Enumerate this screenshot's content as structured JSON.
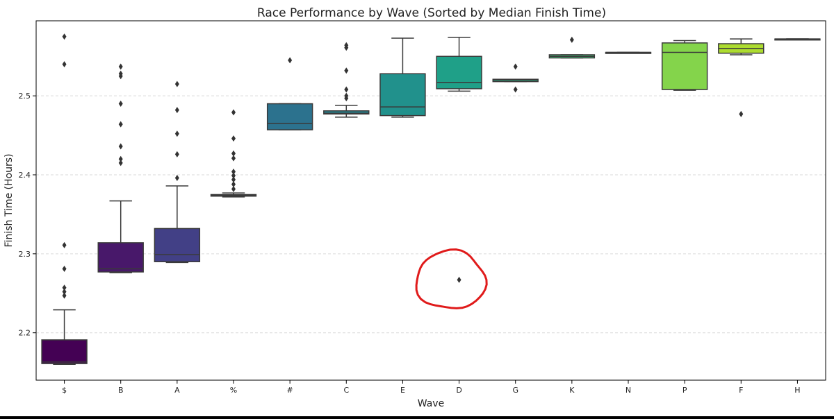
{
  "chart_data": {
    "type": "box",
    "title": "Race Performance by Wave (Sorted by Median Finish Time)",
    "xlabel": "Wave",
    "ylabel": "Finish Time (Hours)",
    "ylim": [
      2.14,
      2.595
    ],
    "yticks": [
      2.2,
      2.3,
      2.4,
      2.5
    ],
    "grid": "y-dashed",
    "categories": [
      "$",
      "B",
      "A",
      "%",
      "#",
      "C",
      "E",
      "D",
      "G",
      "K",
      "N",
      "P",
      "F",
      "H"
    ],
    "boxes": [
      {
        "wave": "$",
        "q1": 2.161,
        "median": 2.163,
        "q3": 2.191,
        "whisker_low": 2.16,
        "whisker_high": 2.229,
        "outliers": [
          2.575,
          2.54,
          2.311,
          2.281,
          2.257,
          2.252,
          2.247
        ],
        "color": "#440154"
      },
      {
        "wave": "B",
        "q1": 2.277,
        "median": 2.281,
        "q3": 2.314,
        "whisker_low": 2.276,
        "whisker_high": 2.367,
        "outliers": [
          2.537,
          2.528,
          2.525,
          2.49,
          2.464,
          2.436,
          2.42,
          2.415
        ],
        "color": "#48186a"
      },
      {
        "wave": "A",
        "q1": 2.29,
        "median": 2.299,
        "q3": 2.332,
        "whisker_low": 2.289,
        "whisker_high": 2.386,
        "outliers": [
          2.515,
          2.482,
          2.452,
          2.426,
          2.396
        ],
        "color": "#424086"
      },
      {
        "wave": "%",
        "q1": 2.373,
        "median": 2.374,
        "q3": 2.375,
        "whisker_low": 2.372,
        "whisker_high": 2.377,
        "outliers": [
          2.479,
          2.446,
          2.427,
          2.421,
          2.404,
          2.399,
          2.394,
          2.388,
          2.382
        ],
        "color": "#39568c"
      },
      {
        "wave": "#",
        "q1": 2.457,
        "median": 2.465,
        "q3": 2.49,
        "whisker_low": 2.457,
        "whisker_high": 2.49,
        "outliers": [
          2.545
        ],
        "color": "#2c728e"
      },
      {
        "wave": "C",
        "q1": 2.477,
        "median": 2.478,
        "q3": 2.481,
        "whisker_low": 2.473,
        "whisker_high": 2.488,
        "outliers": [
          2.564,
          2.561,
          2.532,
          2.508,
          2.5,
          2.497
        ],
        "color": "#26828e"
      },
      {
        "wave": "E",
        "q1": 2.475,
        "median": 2.486,
        "q3": 2.528,
        "whisker_low": 2.473,
        "whisker_high": 2.573,
        "outliers": [],
        "color": "#21918c"
      },
      {
        "wave": "D",
        "q1": 2.509,
        "median": 2.517,
        "q3": 2.55,
        "whisker_low": 2.506,
        "whisker_high": 2.574,
        "outliers": [
          2.267
        ],
        "color": "#1fa088"
      },
      {
        "wave": "G",
        "q1": 2.518,
        "median": 2.52,
        "q3": 2.521,
        "whisker_low": 2.518,
        "whisker_high": 2.521,
        "outliers": [
          2.537,
          2.508
        ],
        "color": "#28ae80"
      },
      {
        "wave": "K",
        "q1": 2.548,
        "median": 2.55,
        "q3": 2.552,
        "whisker_low": 2.548,
        "whisker_high": 2.552,
        "outliers": [
          2.571
        ],
        "color": "#3fbc73"
      },
      {
        "wave": "N",
        "q1": 2.555,
        "median": 2.555,
        "q3": 2.555,
        "whisker_low": 2.555,
        "whisker_high": 2.555,
        "outliers": [],
        "color": "#5ec962"
      },
      {
        "wave": "P",
        "q1": 2.508,
        "median": 2.555,
        "q3": 2.567,
        "whisker_low": 2.507,
        "whisker_high": 2.57,
        "outliers": [],
        "color": "#84d44b"
      },
      {
        "wave": "F",
        "q1": 2.554,
        "median": 2.56,
        "q3": 2.566,
        "whisker_low": 2.552,
        "whisker_high": 2.572,
        "outliers": [
          2.477
        ],
        "color": "#addc30"
      },
      {
        "wave": "H",
        "q1": 2.572,
        "median": 2.572,
        "q3": 2.572,
        "whisker_low": 2.572,
        "whisker_high": 2.572,
        "outliers": [],
        "color": "#d8e219"
      }
    ],
    "annotation": {
      "type": "hand-drawn-circle",
      "target_wave": "D",
      "target_value": 2.267,
      "color": "#e01b1b"
    }
  }
}
